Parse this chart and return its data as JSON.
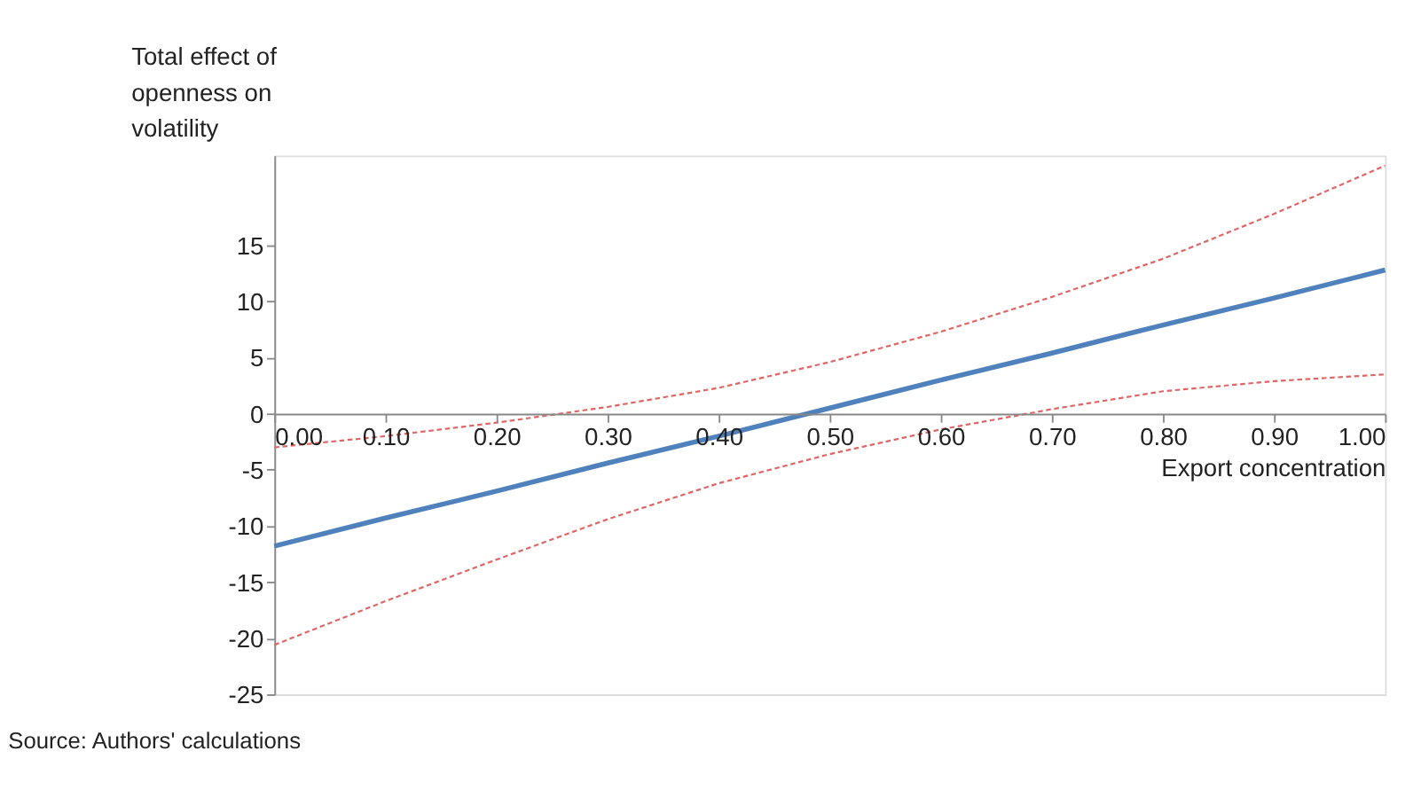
{
  "chart_data": {
    "type": "line",
    "ylabel": "Total effect of openness on volatility",
    "xlabel": "Export concentration",
    "annotations": [
      "Source: Authors' calculations"
    ],
    "x": [
      0,
      0.1,
      0.2,
      0.3,
      0.4,
      0.5,
      0.6,
      0.7,
      0.8,
      0.9,
      1.0
    ],
    "series": [
      {
        "color": "#4f81bd",
        "line_style": "solid",
        "values": [
          -11.8,
          -9.3,
          -6.9,
          -4.4,
          -2.0,
          0.5,
          3.0,
          5.4,
          7.9,
          10.3,
          12.8
        ]
      },
      {
        "color": "#e06666",
        "line_style": "dotted",
        "values": [
          -3.0,
          -2.0,
          -0.8,
          0.6,
          2.3,
          4.6,
          7.3,
          10.4,
          13.8,
          17.8,
          22.1
        ]
      },
      {
        "color": "#e06666",
        "line_style": "dotted",
        "values": [
          -20.6,
          -16.7,
          -13.0,
          -9.4,
          -6.2,
          -3.6,
          -1.4,
          0.4,
          2.0,
          2.9,
          3.5
        ]
      }
    ],
    "xlim": [
      0,
      1.0
    ],
    "xticks": [
      {
        "value": 0,
        "label": "0.00"
      },
      {
        "value": 0.1,
        "label": "0.10"
      },
      {
        "value": 0.2,
        "label": "0.20"
      },
      {
        "value": 0.3,
        "label": "0.30"
      },
      {
        "value": 0.4,
        "label": "0.40"
      },
      {
        "value": 0.5,
        "label": "0.50"
      },
      {
        "value": 0.6,
        "label": "0.60"
      },
      {
        "value": 0.7,
        "label": "0.70"
      },
      {
        "value": 0.8,
        "label": "0.80"
      },
      {
        "value": 0.9,
        "label": "0.90"
      },
      {
        "value": 1.0,
        "label": "1.00"
      }
    ],
    "ylim": [
      -25,
      23
    ],
    "yticks": [
      -25,
      -20,
      -15,
      -10,
      -5,
      0,
      5,
      10,
      15
    ],
    "grid": false,
    "marker": "none"
  }
}
